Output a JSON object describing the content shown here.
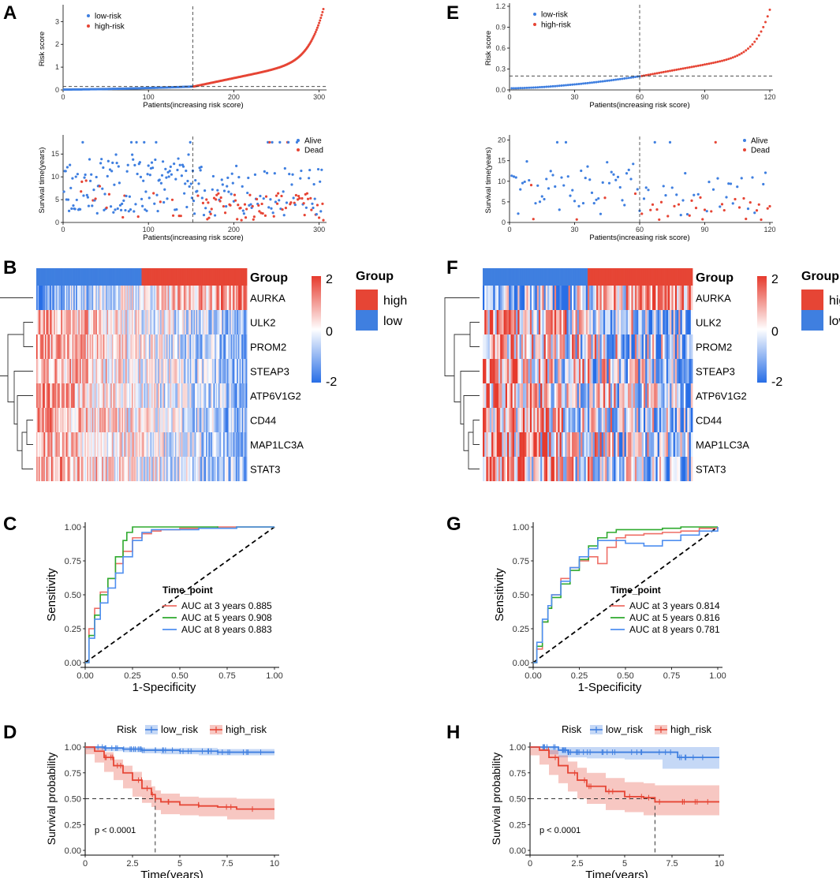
{
  "colors": {
    "red": "#E64535",
    "blue": "#3F7FE0",
    "green": "#2EAA2E",
    "roc_red": "#EE6E66",
    "roc_blue": "#4F8FF0",
    "grey": "#333333"
  },
  "panels": {
    "A": {
      "letter": "A"
    },
    "B": {
      "letter": "B"
    },
    "C": {
      "letter": "C"
    },
    "D": {
      "letter": "D"
    },
    "E": {
      "letter": "E"
    },
    "F": {
      "letter": "F"
    },
    "G": {
      "letter": "G"
    },
    "H": {
      "letter": "H"
    }
  },
  "chart_data": [
    {
      "panel": "A",
      "type": "scatter",
      "subtype": "risk-score",
      "ylabel": "Risk score",
      "xlabel": "Patients(increasing risk score)",
      "n": 305,
      "cutoff_index": 152,
      "cutoff_value": 0.15,
      "xlim": [
        0,
        305
      ],
      "xticks": [
        0,
        100,
        200,
        300
      ],
      "ylim": [
        0,
        3.6
      ],
      "yticks": [
        0,
        1,
        2,
        3
      ],
      "legend": [
        "low-risk",
        "high-risk"
      ],
      "max_score": 3.55
    },
    {
      "panel": "A2",
      "type": "scatter",
      "subtype": "survival-time",
      "ylabel": "Survival time(years)",
      "xlabel": "Patients(increasing risk score)",
      "n": 305,
      "cutoff_index": 152,
      "xlim": [
        0,
        305
      ],
      "xticks": [
        0,
        100,
        200,
        300
      ],
      "ylim": [
        0,
        18.5
      ],
      "yticks": [
        0,
        5,
        10,
        15
      ],
      "legend": [
        "Alive",
        "Dead"
      ]
    },
    {
      "panel": "B",
      "type": "heatmap",
      "genes": [
        "AURKA",
        "ULK2",
        "PROM2",
        "STEAP3",
        "ATP6V1G2",
        "CD44",
        "MAP1LC3A",
        "STAT3"
      ],
      "group_label": "Group",
      "legend_title": "Group",
      "legend_items": [
        "high",
        "low"
      ],
      "scale_ticks": [
        "2",
        "0",
        "-2"
      ],
      "n_cols": 170
    },
    {
      "panel": "C",
      "type": "line",
      "subtype": "roc",
      "xlabel": "1-Specificity",
      "ylabel": "Sensitivity",
      "xticks": [
        "0.00",
        "0.25",
        "0.50",
        "0.75",
        "1.00"
      ],
      "yticks": [
        "0.00",
        "0.25",
        "0.50",
        "0.75",
        "1.00"
      ],
      "legend_title": "Time_point",
      "series": [
        {
          "name": "AUC at 3 years 0.885",
          "color": "red",
          "x": [
            0,
            0.02,
            0.05,
            0.08,
            0.12,
            0.16,
            0.2,
            0.25,
            0.3,
            0.35,
            0.4,
            0.5,
            0.6,
            0.7,
            0.8,
            0.9,
            1.0
          ],
          "y": [
            0,
            0.25,
            0.4,
            0.52,
            0.62,
            0.73,
            0.82,
            0.92,
            0.95,
            0.97,
            0.98,
            0.99,
            0.99,
            1,
            1,
            1,
            1
          ]
        },
        {
          "name": "AUC at 5 years 0.908",
          "color": "green",
          "x": [
            0,
            0.02,
            0.05,
            0.08,
            0.12,
            0.16,
            0.2,
            0.22,
            0.25,
            0.3,
            0.35,
            0.4,
            0.5,
            0.6,
            0.7,
            0.8,
            0.9,
            1.0
          ],
          "y": [
            0,
            0.2,
            0.35,
            0.5,
            0.62,
            0.78,
            0.9,
            0.96,
            1.0,
            1.0,
            1.0,
            1.0,
            1.0,
            1.0,
            0.99,
            1.0,
            1.0,
            1.0
          ]
        },
        {
          "name": "AUC at 8 years 0.883",
          "color": "blue",
          "x": [
            0,
            0.02,
            0.05,
            0.08,
            0.12,
            0.16,
            0.2,
            0.25,
            0.3,
            0.35,
            0.4,
            0.5,
            0.6,
            0.7,
            0.8,
            0.9,
            1.0
          ],
          "y": [
            0,
            0.18,
            0.32,
            0.44,
            0.55,
            0.66,
            0.78,
            0.9,
            0.96,
            0.98,
            0.98,
            0.98,
            0.99,
            0.99,
            1,
            1,
            1
          ]
        }
      ]
    },
    {
      "panel": "D",
      "type": "line",
      "subtype": "kaplan-meier",
      "xlabel": "Time(years)",
      "ylabel": "Survival probability",
      "xticks": [
        "0",
        "2.5",
        "5",
        "7.5",
        "10"
      ],
      "yticks": [
        "0.00",
        "0.25",
        "0.50",
        "0.75",
        "1.00"
      ],
      "legend_title": "Risk",
      "legend": [
        "low_risk",
        "high_risk"
      ],
      "pvalue": "p < 0.0001",
      "median_high": 3.7,
      "series": [
        {
          "name": "low_risk",
          "color": "blue",
          "x": [
            0,
            1,
            2,
            3,
            4,
            5,
            6,
            7,
            8,
            9,
            10
          ],
          "y": [
            1,
            0.99,
            0.98,
            0.97,
            0.97,
            0.96,
            0.96,
            0.95,
            0.95,
            0.95,
            0.95
          ],
          "lo": [
            1,
            0.98,
            0.96,
            0.95,
            0.94,
            0.93,
            0.93,
            0.92,
            0.92,
            0.92,
            0.92
          ],
          "hi": [
            1,
            1,
            1,
            0.99,
            0.99,
            0.99,
            0.99,
            0.98,
            0.98,
            0.98,
            0.98
          ]
        },
        {
          "name": "high_risk",
          "color": "red",
          "x": [
            0,
            0.5,
            1,
            1.5,
            2,
            2.5,
            3,
            3.5,
            3.7,
            4,
            5,
            6,
            7,
            7.5,
            8,
            9,
            10
          ],
          "y": [
            1,
            0.96,
            0.9,
            0.82,
            0.75,
            0.68,
            0.6,
            0.54,
            0.5,
            0.47,
            0.44,
            0.43,
            0.42,
            0.42,
            0.4,
            0.4,
            0.4
          ],
          "lo": [
            1,
            0.93,
            0.85,
            0.76,
            0.68,
            0.6,
            0.52,
            0.46,
            0.42,
            0.39,
            0.35,
            0.34,
            0.33,
            0.33,
            0.3,
            0.3,
            0.3
          ],
          "hi": [
            1,
            0.99,
            0.95,
            0.88,
            0.82,
            0.76,
            0.68,
            0.62,
            0.58,
            0.55,
            0.52,
            0.51,
            0.51,
            0.51,
            0.5,
            0.5,
            0.5
          ]
        }
      ]
    },
    {
      "panel": "E",
      "type": "scatter",
      "subtype": "risk-score",
      "ylabel": "Risk score",
      "xlabel": "Patients(increasing risk score)",
      "n": 120,
      "cutoff_index": 60,
      "cutoff_value": 0.2,
      "xlim": [
        0,
        120
      ],
      "xticks": [
        0,
        30,
        60,
        90,
        120
      ],
      "ylim": [
        0,
        1.2
      ],
      "yticks": [
        "0.0",
        "0.3",
        "0.6",
        "0.9",
        "1.2"
      ],
      "legend": [
        "low-risk",
        "high-risk"
      ],
      "max_score": 1.15
    },
    {
      "panel": "E2",
      "type": "scatter",
      "subtype": "survival-time",
      "ylabel": "Survival time(years)",
      "xlabel": "Patients(increasing risk score)",
      "n": 120,
      "cutoff_index": 60,
      "xlim": [
        0,
        120
      ],
      "xticks": [
        0,
        30,
        60,
        90,
        120
      ],
      "ylim": [
        0,
        20.5
      ],
      "yticks": [
        0,
        5,
        10,
        15,
        20
      ],
      "legend": [
        "Alive",
        "Dead"
      ]
    },
    {
      "panel": "F",
      "type": "heatmap",
      "genes": [
        "AURKA",
        "ULK2",
        "PROM2",
        "STEAP3",
        "ATP6V1G2",
        "CD44",
        "MAP1LC3A",
        "STAT3"
      ],
      "group_label": "Group",
      "legend_title": "Group",
      "legend_items": [
        "high",
        "low"
      ],
      "scale_ticks": [
        "2",
        "0",
        "-2"
      ],
      "n_cols": 120
    },
    {
      "panel": "G",
      "type": "line",
      "subtype": "roc",
      "xlabel": "1-Specificity",
      "ylabel": "Sensitivity",
      "xticks": [
        "0.00",
        "0.25",
        "0.50",
        "0.75",
        "1.00"
      ],
      "yticks": [
        "0.00",
        "0.25",
        "0.50",
        "0.75",
        "1.00"
      ],
      "legend_title": "Time_point",
      "series": [
        {
          "name": "AUC at 3 years 0.814",
          "color": "red",
          "x": [
            0,
            0.02,
            0.05,
            0.08,
            0.1,
            0.15,
            0.2,
            0.25,
            0.3,
            0.35,
            0.4,
            0.45,
            0.5,
            0.6,
            0.7,
            0.8,
            0.9,
            1.0
          ],
          "y": [
            0,
            0.1,
            0.3,
            0.4,
            0.5,
            0.62,
            0.7,
            0.75,
            0.78,
            0.73,
            0.85,
            0.92,
            0.94,
            0.95,
            0.96,
            0.97,
            0.99,
            1.0
          ]
        },
        {
          "name": "AUC at 5 years 0.816",
          "color": "green",
          "x": [
            0,
            0.02,
            0.05,
            0.08,
            0.1,
            0.15,
            0.2,
            0.25,
            0.3,
            0.35,
            0.4,
            0.45,
            0.5,
            0.6,
            0.7,
            0.8,
            0.9,
            1.0
          ],
          "y": [
            0,
            0.12,
            0.3,
            0.4,
            0.48,
            0.58,
            0.68,
            0.76,
            0.86,
            0.92,
            0.96,
            0.98,
            0.98,
            0.98,
            0.99,
            1.0,
            1.0,
            1.0
          ]
        },
        {
          "name": "AUC at 8 years 0.781",
          "color": "blue",
          "x": [
            0,
            0.02,
            0.05,
            0.08,
            0.1,
            0.15,
            0.2,
            0.25,
            0.3,
            0.35,
            0.4,
            0.45,
            0.5,
            0.6,
            0.7,
            0.8,
            0.9,
            1.0
          ],
          "y": [
            0,
            0.15,
            0.32,
            0.42,
            0.5,
            0.6,
            0.7,
            0.78,
            0.84,
            0.9,
            0.9,
            0.9,
            0.88,
            0.86,
            0.9,
            0.94,
            0.97,
            1.0
          ]
        }
      ]
    },
    {
      "panel": "H",
      "type": "line",
      "subtype": "kaplan-meier",
      "xlabel": "Time(years)",
      "ylabel": "Survival probability",
      "xticks": [
        "0",
        "2.5",
        "5",
        "7.5",
        "10"
      ],
      "yticks": [
        "0.00",
        "0.25",
        "0.50",
        "0.75",
        "1.00"
      ],
      "legend_title": "Risk",
      "legend": [
        "low_risk",
        "high_risk"
      ],
      "pvalue": "p < 0.0001",
      "median_high": 6.6,
      "series": [
        {
          "name": "low_risk",
          "color": "blue",
          "x": [
            0,
            1,
            1.5,
            2,
            3,
            4,
            5,
            6,
            7,
            7.8,
            8,
            9,
            10
          ],
          "y": [
            1,
            1,
            0.97,
            0.95,
            0.95,
            0.95,
            0.95,
            0.95,
            0.95,
            0.9,
            0.9,
            0.9,
            0.9
          ],
          "lo": [
            1,
            1,
            0.93,
            0.9,
            0.9,
            0.89,
            0.89,
            0.88,
            0.88,
            0.79,
            0.79,
            0.79,
            0.79
          ],
          "hi": [
            1,
            1,
            1,
            1,
            1,
            1,
            1,
            1,
            1,
            1,
            1,
            1,
            1
          ]
        },
        {
          "name": "high_risk",
          "color": "red",
          "x": [
            0,
            0.5,
            1,
            1.5,
            2,
            2.5,
            3,
            4,
            5,
            6,
            6.6,
            7,
            8,
            9,
            10
          ],
          "y": [
            1,
            0.97,
            0.9,
            0.82,
            0.75,
            0.68,
            0.62,
            0.57,
            0.52,
            0.51,
            0.47,
            0.47,
            0.47,
            0.47,
            0.47
          ],
          "lo": [
            1,
            0.92,
            0.83,
            0.73,
            0.65,
            0.57,
            0.5,
            0.45,
            0.39,
            0.37,
            0.34,
            0.34,
            0.34,
            0.34,
            0.34
          ],
          "hi": [
            1,
            1,
            0.97,
            0.92,
            0.86,
            0.8,
            0.75,
            0.7,
            0.66,
            0.65,
            0.63,
            0.63,
            0.63,
            0.63,
            0.63
          ]
        }
      ]
    }
  ]
}
